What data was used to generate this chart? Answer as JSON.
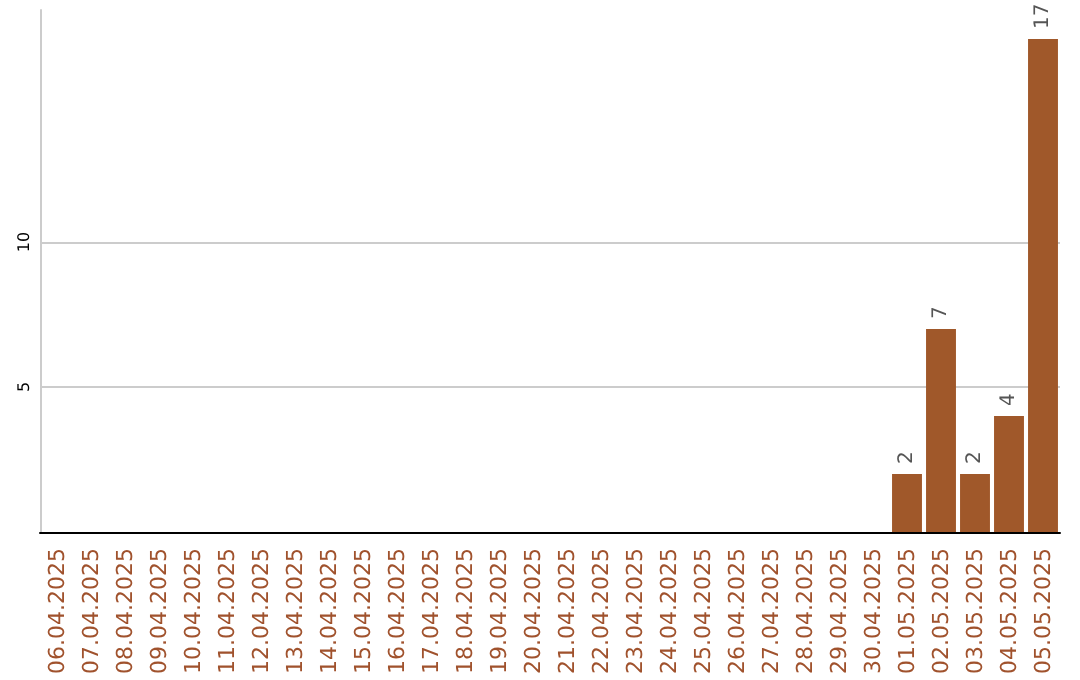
{
  "chart_data": {
    "type": "bar",
    "categories": [
      "06.04.2025",
      "07.04.2025",
      "08.04.2025",
      "09.04.2025",
      "10.04.2025",
      "11.04.2025",
      "12.04.2025",
      "13.04.2025",
      "14.04.2025",
      "15.04.2025",
      "16.04.2025",
      "17.04.2025",
      "18.04.2025",
      "19.04.2025",
      "20.04.2025",
      "21.04.2025",
      "22.04.2025",
      "23.04.2025",
      "24.04.2025",
      "25.04.2025",
      "26.04.2025",
      "27.04.2025",
      "28.04.2025",
      "29.04.2025",
      "30.04.2025",
      "01.05.2025",
      "02.05.2025",
      "03.05.2025",
      "04.05.2025",
      "05.05.2025"
    ],
    "values": [
      0,
      0,
      0,
      0,
      0,
      0,
      0,
      0,
      0,
      0,
      0,
      0,
      0,
      0,
      0,
      0,
      0,
      0,
      0,
      0,
      0,
      0,
      0,
      0,
      0,
      2,
      7,
      2,
      4,
      17
    ],
    "value_labels": [
      null,
      null,
      null,
      null,
      null,
      null,
      null,
      null,
      null,
      null,
      null,
      null,
      null,
      null,
      null,
      null,
      null,
      null,
      null,
      null,
      null,
      null,
      null,
      null,
      null,
      "2",
      "7",
      "2",
      "4",
      "17"
    ],
    "color": "#a0582a",
    "ylim": [
      0,
      18
    ],
    "yticks": [
      5,
      10
    ],
    "grid": "y"
  }
}
